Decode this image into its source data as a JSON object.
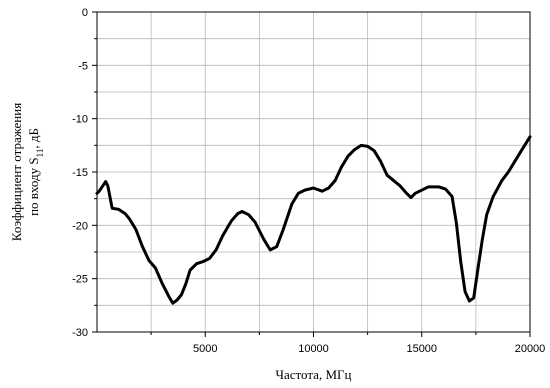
{
  "chart_data": {
    "type": "line",
    "xlabel": "Частота, МГц",
    "ylabel_line1": "Коэффициент отражения",
    "ylabel_line2_prefix": "по входу S",
    "ylabel_line2_sub": "11",
    "ylabel_line2_suffix": ", дБ",
    "xlim": [
      0,
      20000
    ],
    "ylim": [
      -30,
      0
    ],
    "x_ticks": [
      5000,
      10000,
      15000,
      20000
    ],
    "y_ticks": [
      0,
      -5,
      -10,
      -15,
      -20,
      -25,
      -30
    ],
    "grid": true,
    "series": [
      {
        "color": "#000000",
        "x": [
          0,
          100,
          300,
          400,
          500,
          700,
          1000,
          1300,
          1500,
          1800,
          2100,
          2400,
          2700,
          3000,
          3300,
          3500,
          3700,
          3900,
          4100,
          4300,
          4600,
          4900,
          5200,
          5500,
          5800,
          6000,
          6200,
          6500,
          6700,
          7000,
          7300,
          7700,
          8000,
          8300,
          8600,
          9000,
          9300,
          9600,
          10000,
          10400,
          10700,
          11000,
          11300,
          11600,
          11900,
          12200,
          12500,
          12800,
          13100,
          13400,
          13700,
          14000,
          14300,
          14500,
          14700,
          14900,
          15100,
          15300,
          15500,
          15800,
          16100,
          16400,
          16600,
          16800,
          17000,
          17200,
          17400,
          17600,
          17800,
          18000,
          18300,
          18700,
          19000,
          19300,
          19600,
          20000
        ],
        "values": [
          -17,
          -16.8,
          -16.2,
          -15.9,
          -16.3,
          -18.4,
          -18.5,
          -18.9,
          -19.4,
          -20.4,
          -22,
          -23.3,
          -24,
          -25.4,
          -26.6,
          -27.3,
          -27,
          -26.5,
          -25.5,
          -24.2,
          -23.6,
          -23.4,
          -23.1,
          -22.3,
          -21,
          -20.3,
          -19.6,
          -18.9,
          -18.7,
          -19,
          -19.7,
          -21.3,
          -22.3,
          -22,
          -20.4,
          -18,
          -17,
          -16.7,
          -16.5,
          -16.8,
          -16.5,
          -15.8,
          -14.5,
          -13.5,
          -12.9,
          -12.5,
          -12.6,
          -13,
          -14,
          -15.3,
          -15.8,
          -16.3,
          -17,
          -17.4,
          -17,
          -16.8,
          -16.6,
          -16.4,
          -16.4,
          -16.4,
          -16.6,
          -17.3,
          -19.8,
          -23.4,
          -26.2,
          -27.1,
          -26.8,
          -24,
          -21.3,
          -19,
          -17.3,
          -15.8,
          -15,
          -14,
          -13,
          -11.7
        ]
      }
    ]
  }
}
